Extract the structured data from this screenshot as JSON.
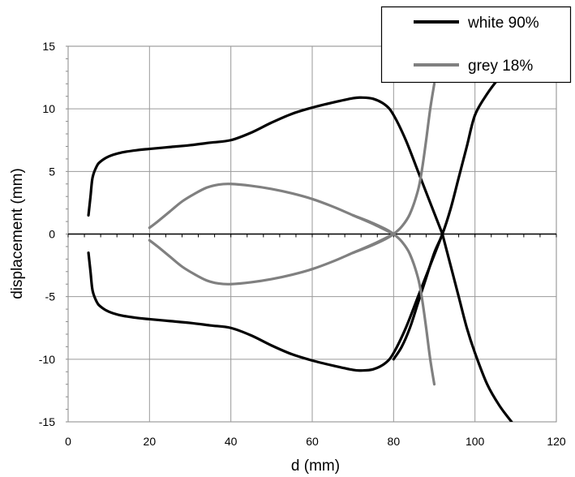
{
  "chart_data": {
    "type": "line",
    "xlabel": "d (mm)",
    "ylabel": "displacement (mm)",
    "xlim": [
      0,
      120
    ],
    "ylim": [
      -15,
      15
    ],
    "xticks": [
      "0",
      "20",
      "40",
      "60",
      "80",
      "100",
      "120"
    ],
    "yticks": [
      "15",
      "10",
      "5",
      "0",
      "-5",
      "-10",
      "-15"
    ],
    "grid": true,
    "legend_position": "top-right",
    "legend": [
      {
        "label": "white 90%",
        "color": "#000000"
      },
      {
        "label": "grey 18%",
        "color": "#808080"
      }
    ],
    "series": [
      {
        "name": "white 90%",
        "color": "#000000",
        "branch": "upper",
        "x": [
          5,
          5.5,
          6,
          7,
          8,
          10,
          13,
          17,
          20,
          25,
          30,
          35,
          40,
          45,
          50,
          55,
          60,
          65,
          70,
          72,
          75,
          78,
          80,
          83,
          86,
          89,
          92
        ],
        "y": [
          1.5,
          3,
          4.5,
          5.4,
          5.8,
          6.2,
          6.5,
          6.7,
          6.8,
          6.95,
          7.1,
          7.3,
          7.5,
          8.1,
          8.9,
          9.6,
          10.1,
          10.5,
          10.85,
          10.9,
          10.8,
          10.3,
          9.5,
          7.5,
          5,
          2.5,
          0
        ]
      },
      {
        "name": "white 90%",
        "color": "#000000",
        "branch": "lower",
        "x": [
          5,
          5.5,
          6,
          7,
          8,
          10,
          13,
          17,
          20,
          25,
          30,
          35,
          40,
          45,
          50,
          55,
          60,
          65,
          70,
          72,
          75,
          78,
          80,
          83,
          86,
          89,
          92
        ],
        "y": [
          -1.5,
          -3,
          -4.5,
          -5.4,
          -5.8,
          -6.2,
          -6.5,
          -6.7,
          -6.8,
          -6.95,
          -7.1,
          -7.3,
          -7.5,
          -8.1,
          -8.9,
          -9.6,
          -10.1,
          -10.5,
          -10.85,
          -10.9,
          -10.8,
          -10.3,
          -9.5,
          -7.5,
          -5,
          -2.5,
          0
        ]
      },
      {
        "name": "white 90%",
        "color": "#000000",
        "branch": "rising",
        "x": [
          80,
          82,
          84,
          86,
          88,
          90,
          92,
          94,
          96,
          98,
          100,
          103,
          106,
          110
        ],
        "y": [
          -10,
          -9,
          -7.5,
          -5.5,
          -3.5,
          -1.5,
          0,
          2,
          4.5,
          7,
          9.5,
          11.2,
          12.5,
          14
        ]
      },
      {
        "name": "white 90%",
        "color": "#000000",
        "branch": "falling",
        "x": [
          92,
          94,
          96,
          98,
          100,
          103,
          106,
          109
        ],
        "y": [
          0,
          -2.5,
          -5,
          -7.5,
          -9.5,
          -12,
          -13.7,
          -15
        ]
      },
      {
        "name": "grey 18%",
        "color": "#808080",
        "branch": "upper",
        "x": [
          20,
          22,
          25,
          28,
          31,
          34,
          37,
          40,
          45,
          50,
          55,
          60,
          65,
          70,
          75,
          80
        ],
        "y": [
          0.5,
          1,
          1.8,
          2.6,
          3.2,
          3.7,
          3.95,
          4,
          3.85,
          3.6,
          3.25,
          2.8,
          2.2,
          1.5,
          0.8,
          0
        ]
      },
      {
        "name": "grey 18%",
        "color": "#808080",
        "branch": "lower",
        "x": [
          20,
          22,
          25,
          28,
          31,
          34,
          37,
          40,
          45,
          50,
          55,
          60,
          65,
          70,
          75,
          80
        ],
        "y": [
          -0.5,
          -1,
          -1.8,
          -2.6,
          -3.2,
          -3.7,
          -3.95,
          -4,
          -3.85,
          -3.6,
          -3.25,
          -2.8,
          -2.2,
          -1.5,
          -0.8,
          0
        ]
      },
      {
        "name": "grey 18%",
        "color": "#808080",
        "branch": "rising",
        "x": [
          70,
          74,
          78,
          80,
          82,
          84,
          86,
          87,
          88,
          89,
          90
        ],
        "y": [
          -1.5,
          -1,
          -0.4,
          0,
          0.6,
          1.6,
          3.5,
          5.2,
          7.5,
          10,
          12
        ]
      },
      {
        "name": "grey 18%",
        "color": "#808080",
        "branch": "falling",
        "x": [
          70,
          74,
          78,
          80,
          82,
          84,
          86,
          87,
          88,
          89,
          90
        ],
        "y": [
          1.5,
          1,
          0.4,
          0,
          -0.6,
          -1.6,
          -3.5,
          -5.2,
          -7.5,
          -10,
          -12
        ]
      }
    ]
  }
}
